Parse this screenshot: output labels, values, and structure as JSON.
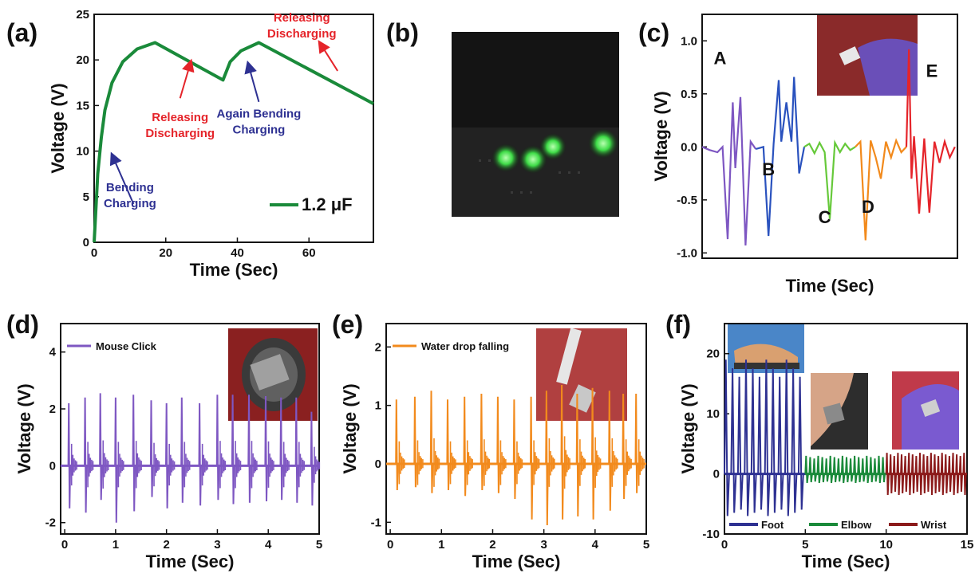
{
  "panels": [
    {
      "id": "a",
      "label": "(a)"
    },
    {
      "id": "b",
      "label": "(b)"
    },
    {
      "id": "c",
      "label": "(c)"
    },
    {
      "id": "d",
      "label": "(d)"
    },
    {
      "id": "e",
      "label": "(e)"
    },
    {
      "id": "f",
      "label": "(f)"
    }
  ],
  "photo_b": {
    "led_color": "#4dff5a"
  },
  "chart_data": [
    {
      "panel": "a",
      "type": "line",
      "xlabel": "Time (Sec)",
      "ylabel": "Voltage (V)",
      "xlim": [
        0,
        78
      ],
      "ylim": [
        0,
        25
      ],
      "xticks": [
        0,
        20,
        40,
        60
      ],
      "yticks": [
        0,
        5,
        10,
        15,
        20,
        25
      ],
      "series": [
        {
          "name": "1.2 μF",
          "color": "#1a8a3a",
          "x": [
            0,
            1,
            2,
            3,
            5,
            8,
            12,
            17,
            36,
            38,
            41,
            46,
            78
          ],
          "y": [
            0,
            7.5,
            11.5,
            14.5,
            17.5,
            19.8,
            21.2,
            21.9,
            17.8,
            19.8,
            21,
            21.9,
            15.2
          ]
        }
      ],
      "annotations": [
        {
          "lines": [
            "Releasing",
            "Discharging"
          ],
          "color": "#e5242a",
          "tx": 58,
          "ty": 24.2,
          "ax": 68,
          "ay": 18.8,
          "hx": 63,
          "hy": 21.9
        },
        {
          "lines": [
            "Releasing",
            "Discharging"
          ],
          "color": "#e5242a",
          "tx": 24,
          "ty": 13.3,
          "ax": 24,
          "ay": 15.8,
          "hx": 27,
          "hy": 19.8
        },
        {
          "lines": [
            "Again  Bending",
            "Charging"
          ],
          "color": "#2e3192",
          "tx": 46,
          "ty": 13.7,
          "ax": 46,
          "ay": 15.4,
          "hx": 43,
          "hy": 19.6
        },
        {
          "lines": [
            "Bending",
            "Charging"
          ],
          "color": "#2e3192",
          "tx": 10,
          "ty": 5.6,
          "ax": 11,
          "ay": 4.2,
          "hx": 5,
          "hy": 9.6
        }
      ]
    },
    {
      "panel": "c",
      "type": "line",
      "xlabel": "Time (Sec)",
      "ylabel": "Voltage (V)",
      "xlim": [
        0,
        100
      ],
      "ylim": [
        -1.05,
        1.25
      ],
      "yticks": [
        -1.0,
        -0.5,
        0.0,
        0.5,
        1.0
      ],
      "series": [
        {
          "name": "A",
          "color": "#7e57c2",
          "x": [
            0,
            3,
            6,
            8,
            10,
            12,
            13,
            15,
            17,
            19,
            21
          ],
          "y": [
            0,
            -0.03,
            -0.05,
            0,
            -0.87,
            0.42,
            -0.2,
            0.47,
            -0.93,
            0.05,
            -0.02
          ]
        },
        {
          "name": "B",
          "color": "#2a52be",
          "x": [
            21,
            24,
            26,
            28,
            30,
            31,
            33,
            35,
            36,
            38,
            40
          ],
          "y": [
            -0.02,
            0,
            -0.84,
            0.03,
            0.63,
            0.05,
            0.42,
            0.05,
            0.66,
            -0.25,
            0
          ]
        },
        {
          "name": "C",
          "color": "#66c93a",
          "x": [
            40,
            42,
            44,
            46,
            48,
            50,
            52,
            54,
            56,
            58,
            60
          ],
          "y": [
            0,
            0.03,
            -0.06,
            0.04,
            -0.05,
            -0.68,
            0.04,
            -0.05,
            0.03,
            -0.03,
            0
          ]
        },
        {
          "name": "D",
          "color": "#f28a1c",
          "x": [
            60,
            62,
            64,
            66,
            68,
            70,
            72,
            74,
            76,
            78,
            80
          ],
          "y": [
            0,
            0.05,
            -0.88,
            0.06,
            -0.1,
            -0.3,
            0.05,
            -0.1,
            0.06,
            -0.05,
            0
          ]
        },
        {
          "name": "E",
          "color": "#e5242a",
          "x": [
            80,
            81,
            82,
            83,
            85,
            87,
            89,
            91,
            93,
            95,
            97,
            99
          ],
          "y": [
            0,
            0.92,
            -0.3,
            0.1,
            -0.63,
            0.08,
            -0.62,
            0.05,
            -0.15,
            0.05,
            -0.1,
            0
          ]
        }
      ],
      "labels": [
        {
          "text": "A",
          "x": 7,
          "y": 0.78
        },
        {
          "text": "B",
          "x": 26,
          "y": -0.27
        },
        {
          "text": "C",
          "x": 48,
          "y": -0.72
        },
        {
          "text": "D",
          "x": 65,
          "y": -0.62
        },
        {
          "text": "E",
          "x": 90,
          "y": 0.66
        }
      ],
      "inset": {
        "position": "top-right"
      }
    },
    {
      "panel": "d",
      "type": "line",
      "xlabel": "Time (Sec)",
      "ylabel": "Voltage (V)",
      "xlim": [
        -0.08,
        5
      ],
      "ylim": [
        -2.4,
        5
      ],
      "xticks": [
        0,
        1,
        2,
        3,
        4,
        5
      ],
      "yticks": [
        -2,
        0,
        2,
        4
      ],
      "series": [
        {
          "name": "Mouse Click",
          "color": "#7e57c2",
          "peaks_x": [
            0.08,
            0.4,
            0.7,
            1.0,
            1.35,
            1.7,
            2.0,
            2.3,
            2.65,
            3.0,
            3.3,
            3.62,
            3.95,
            4.25,
            4.55,
            4.85
          ],
          "peaks_pos": [
            2.2,
            2.4,
            2.55,
            2.4,
            2.5,
            2.3,
            2.2,
            2.4,
            2.2,
            2.5,
            2.5,
            2.5,
            2.45,
            2.4,
            2.4,
            1.9
          ],
          "peaks_neg": [
            -1.5,
            -1.65,
            -1.2,
            -2.0,
            -1.6,
            -1.1,
            -1.5,
            -1.3,
            -1.4,
            -1.2,
            -1.35,
            -1.3,
            -1.25,
            -1.2,
            -1.3,
            -1.4
          ]
        }
      ],
      "legend": "top-left",
      "inset": {
        "position": "top-right"
      }
    },
    {
      "panel": "e",
      "type": "line",
      "xlabel": "Time (Sec)",
      "ylabel": "Voltage (V)",
      "xlim": [
        -0.08,
        5
      ],
      "ylim": [
        -1.2,
        2.4
      ],
      "xticks": [
        0,
        1,
        2,
        3,
        4,
        5
      ],
      "yticks": [
        -1,
        0,
        1,
        2
      ],
      "series": [
        {
          "name": "Water drop falling",
          "color": "#f28a1c",
          "peaks_x": [
            0.12,
            0.48,
            0.8,
            1.12,
            1.45,
            1.78,
            2.1,
            2.42,
            2.75,
            3.05,
            3.35,
            3.65,
            3.95,
            4.28,
            4.55,
            4.8
          ],
          "peaks_pos": [
            1.1,
            1.15,
            1.25,
            1.1,
            1.15,
            1.2,
            1.15,
            1.1,
            1.15,
            1.25,
            1.35,
            1.2,
            1.3,
            1.25,
            1.2,
            1.2
          ],
          "peaks_neg": [
            -0.45,
            -0.4,
            -0.5,
            -0.45,
            -0.55,
            -0.45,
            -0.5,
            -0.6,
            -0.95,
            -1.05,
            -0.95,
            -0.9,
            -0.95,
            -0.8,
            -0.6,
            -0.5
          ]
        }
      ],
      "legend": "top-left",
      "inset": {
        "position": "top-right"
      }
    },
    {
      "panel": "f",
      "type": "line",
      "xlabel": "Time (Sec)",
      "ylabel": "Voltage (V)",
      "xlim": [
        0,
        15
      ],
      "ylim": [
        -10,
        25
      ],
      "xticks": [
        0,
        5,
        10,
        15
      ],
      "yticks": [
        -10,
        0,
        10,
        20
      ],
      "series": [
        {
          "name": "Foot",
          "color": "#2e3192",
          "xr": [
            0,
            5
          ],
          "cycles": 12,
          "amp": [
            19,
            -7
          ]
        },
        {
          "name": "Elbow",
          "color": "#1a8a3a",
          "xr": [
            5,
            10
          ],
          "cycles": 20,
          "amp": [
            3,
            -1.5
          ]
        },
        {
          "name": "Wrist",
          "color": "#8b1a1a",
          "xr": [
            10,
            15
          ],
          "cycles": 22,
          "amp": [
            3.5,
            -3.5
          ]
        }
      ],
      "legend": "bottom",
      "insets": [
        {
          "position": "top-left"
        },
        {
          "position": "center"
        },
        {
          "position": "right"
        }
      ]
    }
  ]
}
